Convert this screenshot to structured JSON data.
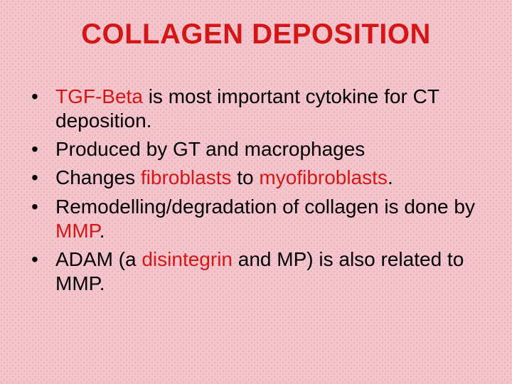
{
  "colors": {
    "background": "#f4c4cc",
    "title": "#d31616",
    "highlight": "#d31616",
    "body_text": "#000000"
  },
  "typography": {
    "title_fontsize": 40,
    "title_weight": "bold",
    "body_fontsize": 28,
    "font_family": "Arial"
  },
  "title": "COLLAGEN DEPOSITION",
  "bullets": [
    {
      "pre": "",
      "hl1": "TGF-Beta",
      "mid": " is most important cytokine for CT deposition.",
      "hl2": "",
      "post": ""
    },
    {
      "pre": "Produced by GT and macrophages",
      "hl1": "",
      "mid": "",
      "hl2": "",
      "post": ""
    },
    {
      "pre": "Changes ",
      "hl1": "fibroblasts",
      "mid": " to ",
      "hl2": "myofibroblasts",
      "post": "."
    },
    {
      "pre": "Remodelling/degradation of collagen is done by ",
      "hl1": "MMP",
      "mid": ".",
      "hl2": "",
      "post": ""
    },
    {
      "pre": "ADAM (a ",
      "hl1": "disintegrin",
      "mid": " and MP) is also related to MMP.",
      "hl2": "",
      "post": ""
    }
  ]
}
